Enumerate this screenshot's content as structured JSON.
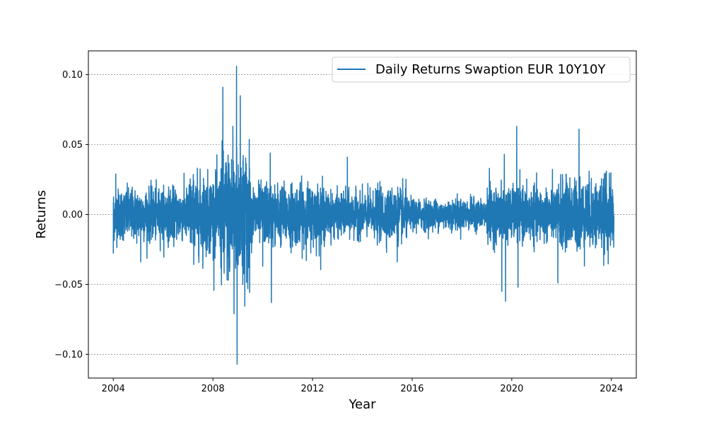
{
  "chart_data": {
    "type": "line",
    "xlabel": "Year",
    "ylabel": "Returns",
    "xlim": [
      2003.0,
      2025.0
    ],
    "ylim": [
      -0.117,
      0.117
    ],
    "x_ticks": [
      2004,
      2008,
      2012,
      2016,
      2020,
      2024
    ],
    "x_tick_labels": [
      "2004",
      "2008",
      "2012",
      "2016",
      "2020",
      "2024"
    ],
    "y_ticks": [
      0.1,
      0.05,
      0.0,
      -0.05,
      -0.1
    ],
    "y_tick_labels": [
      "0.10",
      "0.05",
      "0.00",
      "−0.05",
      "−0.10"
    ],
    "grid": "horizontal-dashed",
    "legend_position": "top-right",
    "series": [
      {
        "name": "Daily Returns Swaption EUR 10Y10Y",
        "color": "#1f77b4",
        "frequency": "daily",
        "x_start": 2004.0,
        "x_end": 2024.1,
        "volatility_regimes": [
          {
            "x": [
              2004.0,
              2007.0
            ],
            "typical_abs_return": 0.012
          },
          {
            "x": [
              2007.0,
              2008.3
            ],
            "typical_abs_return": 0.018
          },
          {
            "x": [
              2008.3,
              2009.5
            ],
            "typical_abs_return": 0.03
          },
          {
            "x": [
              2009.5,
              2012.5
            ],
            "typical_abs_return": 0.014
          },
          {
            "x": [
              2012.5,
              2014.5
            ],
            "typical_abs_return": 0.01
          },
          {
            "x": [
              2014.5,
              2015.8
            ],
            "typical_abs_return": 0.012
          },
          {
            "x": [
              2015.8,
              2019.0
            ],
            "typical_abs_return": 0.007
          },
          {
            "x": [
              2019.0,
              2021.8
            ],
            "typical_abs_return": 0.012
          },
          {
            "x": [
              2021.8,
              2024.1
            ],
            "typical_abs_return": 0.016
          }
        ],
        "notable_points": [
          {
            "x": 2004.0,
            "y": -0.028
          },
          {
            "x": 2004.1,
            "y": 0.029
          },
          {
            "x": 2005.1,
            "y": -0.034
          },
          {
            "x": 2007.6,
            "y": -0.034
          },
          {
            "x": 2008.4,
            "y": 0.091
          },
          {
            "x": 2008.45,
            "y": -0.042
          },
          {
            "x": 2008.8,
            "y": 0.063
          },
          {
            "x": 2008.85,
            "y": -0.071
          },
          {
            "x": 2008.95,
            "y": 0.106
          },
          {
            "x": 2008.97,
            "y": -0.107
          },
          {
            "x": 2009.1,
            "y": 0.085
          },
          {
            "x": 2009.2,
            "y": -0.05
          },
          {
            "x": 2009.4,
            "y": -0.053
          },
          {
            "x": 2010.0,
            "y": -0.037
          },
          {
            "x": 2010.3,
            "y": 0.044
          },
          {
            "x": 2010.35,
            "y": -0.063
          },
          {
            "x": 2013.4,
            "y": 0.041
          },
          {
            "x": 2015.4,
            "y": -0.034
          },
          {
            "x": 2019.1,
            "y": 0.033
          },
          {
            "x": 2019.6,
            "y": -0.055
          },
          {
            "x": 2019.7,
            "y": 0.043
          },
          {
            "x": 2019.75,
            "y": -0.062
          },
          {
            "x": 2020.2,
            "y": 0.063
          },
          {
            "x": 2020.25,
            "y": -0.052
          },
          {
            "x": 2021.85,
            "y": -0.049
          },
          {
            "x": 2022.7,
            "y": 0.061
          },
          {
            "x": 2023.8,
            "y": 0.031
          }
        ]
      }
    ]
  }
}
